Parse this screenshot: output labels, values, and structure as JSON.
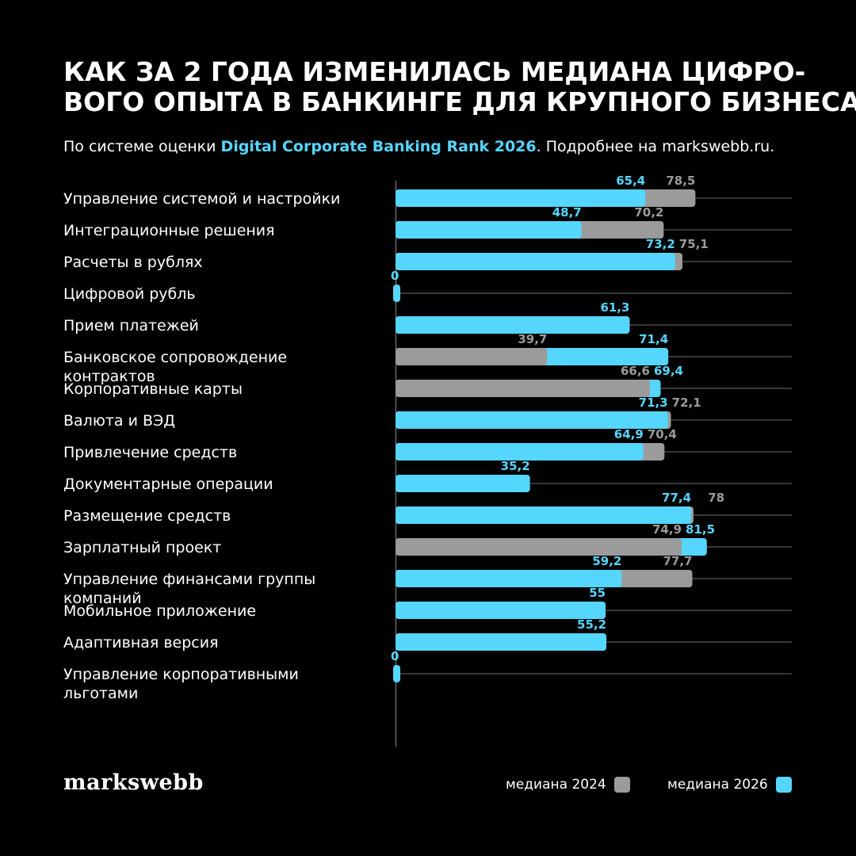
{
  "title": {
    "line1": "КАК ЗА 2 ГОДА ИЗМЕНИЛАСЬ МЕДИАНА ЦИФРО-",
    "line2": "ВОГО ОПЫТА В БАНКИНГЕ ДЛЯ КРУПНОГО БИЗНЕСА"
  },
  "subtitle": {
    "prefix": "По системе оценки ",
    "highlight": "Digital Corporate Banking Rank 2026",
    "suffix": ". Подробнее на markswebb.ru."
  },
  "logo": "markswebb",
  "colors": {
    "median_2024": "#9b9b9b",
    "median_2026": "#55d6ff",
    "background": "#000000"
  },
  "chart_data": {
    "type": "bar",
    "orientation": "horizontal",
    "xlim": [
      0,
      100
    ],
    "grid": true,
    "legend_position": "bottom-right",
    "categories": [
      [
        "Управление системой и настройки"
      ],
      [
        "Интеграционные решения"
      ],
      [
        "Расчеты в рублях"
      ],
      [
        "Цифровой рубль"
      ],
      [
        "Прием платежей"
      ],
      [
        "Банковское сопровождение",
        "контрактов"
      ],
      [
        "Корпоративные карты"
      ],
      [
        "Валюта и ВЭД"
      ],
      [
        "Привлечение средств"
      ],
      [
        "Документарные операции"
      ],
      [
        "Размещение средств"
      ],
      [
        "Зарплатный проект"
      ],
      [
        "Управление финансами группы",
        "компаний"
      ],
      [
        "Мобильное приложение"
      ],
      [
        "Адаптивная версия"
      ],
      [
        "Управление корпоративными",
        "льготами"
      ]
    ],
    "series": [
      {
        "name": "медиана  2024",
        "values": [
          78.5,
          70.2,
          75.1,
          null,
          null,
          39.7,
          66.6,
          72.1,
          70.4,
          null,
          78,
          74.9,
          77.7,
          null,
          null,
          null
        ],
        "labels": [
          "78,5",
          "70,2",
          "75,1",
          "",
          "",
          "39,7",
          "66,6",
          "72,1",
          "70,4",
          "",
          "78",
          "74,9",
          "77,7",
          "",
          "",
          ""
        ]
      },
      {
        "name": "медиана 2026",
        "values": [
          65.4,
          48.7,
          73.2,
          0,
          61.3,
          71.4,
          69.4,
          71.3,
          64.9,
          35.2,
          77.4,
          81.5,
          59.2,
          55,
          55.2,
          0
        ],
        "labels": [
          "65,4",
          "48,7",
          "73,2",
          "0",
          "61,3",
          "71,4",
          "69,4",
          "71,3",
          "64,9",
          "35,2",
          "77,4",
          "81,5",
          "59,2",
          "55",
          "55,2",
          "0"
        ]
      }
    ]
  }
}
